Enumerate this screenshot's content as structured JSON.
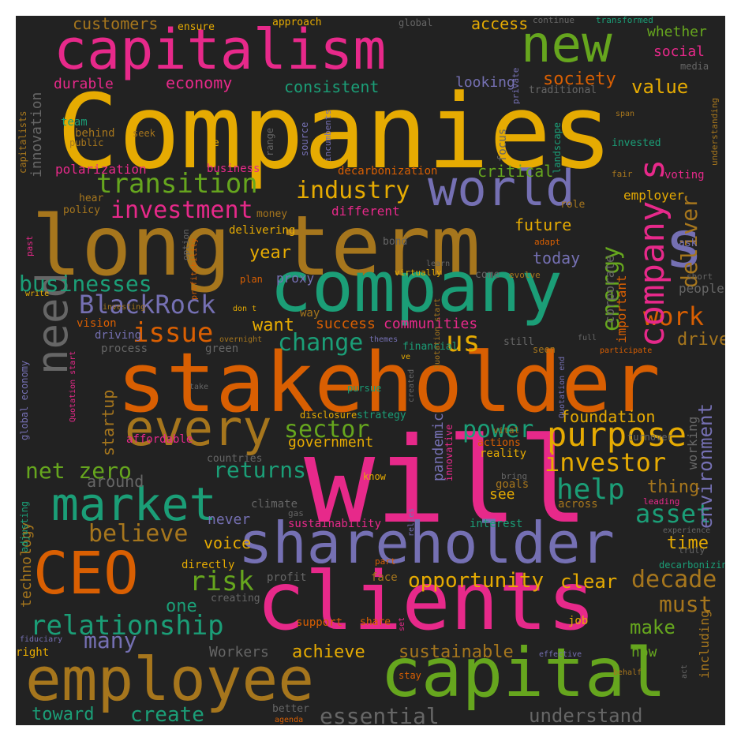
{
  "colors": {
    "background": "#222222",
    "frame": "#ffffff",
    "palette": [
      "#E6AB02",
      "#E7298A",
      "#66A61E",
      "#A6761D",
      "#1B9E77",
      "#7570B3",
      "#D95F02",
      "#666666"
    ]
  },
  "words": {
    "w_companies": {
      "text": "Companies",
      "color": "#E6AB02"
    },
    "w_will": {
      "text": "will",
      "color": "#E7298A"
    },
    "w_stakeholder": {
      "text": "stakeholder",
      "color": "#D95F02"
    },
    "w_long_term": {
      "text": "long term",
      "color": "#A6761D"
    },
    "w_clients": {
      "text": "clients",
      "color": "#E7298A"
    },
    "w_capitalism": {
      "text": "capitalism",
      "color": "#E7298A"
    },
    "w_company": {
      "text": "company",
      "color": "#1B9E77"
    },
    "w_shareholder": {
      "text": "shareholder",
      "color": "#7570B3"
    },
    "w_employee": {
      "text": "employee",
      "color": "#A6761D"
    },
    "w_capital": {
      "text": "capital",
      "color": "#66A61E"
    },
    "w_new": {
      "text": "new",
      "color": "#66A61E"
    },
    "w_world": {
      "text": "world",
      "color": "#7570B3"
    },
    "w_market": {
      "text": "market",
      "color": "#1B9E77"
    },
    "w_ceo": {
      "text": "CEO",
      "color": "#D95F02"
    },
    "w_need": {
      "text": "need",
      "color": "#666666"
    },
    "w_every": {
      "text": "every",
      "color": "#A6761D"
    },
    "w_s": {
      "text": "s",
      "color": "#7570B3"
    },
    "w_transition": {
      "text": "transition",
      "color": "#66A61E"
    },
    "w_investment": {
      "text": "investment",
      "color": "#E7298A"
    },
    "w_industry": {
      "text": "industry",
      "color": "#E6AB02"
    },
    "w_businesses": {
      "text": "businesses",
      "color": "#1B9E77"
    },
    "w_blackrock": {
      "text": "BlackRock",
      "color": "#7570B3"
    },
    "w_issue": {
      "text": "issue",
      "color": "#D95F02"
    },
    "w_change": {
      "text": "change",
      "color": "#1B9E77"
    },
    "w_us": {
      "text": "us",
      "color": "#E6AB02"
    },
    "w_purpose": {
      "text": "purpose",
      "color": "#E6AB02"
    },
    "w_investor": {
      "text": "investor",
      "color": "#E6AB02"
    },
    "w_power": {
      "text": "power",
      "color": "#1B9E77"
    },
    "w_sector": {
      "text": "sector",
      "color": "#66A61E"
    },
    "w_net_zero": {
      "text": "net zero",
      "color": "#66A61E"
    },
    "w_relationship": {
      "text": "relationship",
      "color": "#1B9E77"
    },
    "w_risk": {
      "text": "risk",
      "color": "#66A61E"
    },
    "w_believe": {
      "text": "believe",
      "color": "#A6761D"
    },
    "w_returns": {
      "text": "returns",
      "color": "#1B9E77"
    },
    "w_help": {
      "text": "help",
      "color": "#1B9E77"
    },
    "w_asset": {
      "text": "asset",
      "color": "#1B9E77"
    },
    "w_decade": {
      "text": "decade",
      "color": "#A6761D"
    },
    "w_must": {
      "text": "must",
      "color": "#A6761D"
    },
    "w_opportunity": {
      "text": "opportunity",
      "color": "#E6AB02"
    },
    "w_work": {
      "text": "work",
      "color": "#D95F02"
    },
    "w_energy": {
      "text": "energy",
      "color": "#66A61E"
    },
    "w_companys": {
      "text": "company s",
      "color": "#E7298A"
    },
    "w_deliver": {
      "text": "deliver",
      "color": "#A6761D"
    },
    "w_drive": {
      "text": "drive",
      "color": "#A6761D"
    },
    "w_environment": {
      "text": "environment",
      "color": "#7570B3"
    },
    "w_value": {
      "text": "value",
      "color": "#E6AB02"
    },
    "w_society": {
      "text": "society",
      "color": "#D95F02"
    },
    "w_consistent": {
      "text": "consistent",
      "color": "#1B9E77"
    },
    "w_economy": {
      "text": "economy",
      "color": "#E7298A"
    },
    "w_customers": {
      "text": "customers",
      "color": "#A6761D"
    },
    "w_access": {
      "text": "access",
      "color": "#E6AB02"
    },
    "w_whether": {
      "text": "whether",
      "color": "#66A61E"
    },
    "w_social": {
      "text": "social",
      "color": "#E7298A"
    },
    "w_looking": {
      "text": "looking",
      "color": "#7570B3"
    },
    "w_durable": {
      "text": "durable",
      "color": "#E7298A"
    },
    "w_innovation": {
      "text": "innovation",
      "color": "#666666"
    },
    "w_critical": {
      "text": "critical",
      "color": "#66A61E"
    },
    "w_decarbonization": {
      "text": "decarbonization",
      "color": "#D95F02"
    },
    "w_invested": {
      "text": "invested",
      "color": "#1B9E77"
    },
    "w_different": {
      "text": "different",
      "color": "#E7298A"
    },
    "w_employer": {
      "text": "employer",
      "color": "#E6AB02"
    },
    "w_voting": {
      "text": "voting",
      "color": "#E7298A"
    },
    "w_future": {
      "text": "future",
      "color": "#E6AB02"
    },
    "w_year": {
      "text": "year",
      "color": "#E6AB02"
    },
    "w_today": {
      "text": "today",
      "color": "#7570B3"
    },
    "w_corporate": {
      "text": "corporate",
      "color": "#666666"
    },
    "w_important": {
      "text": "important",
      "color": "#D95F02"
    },
    "w_people": {
      "text": "people",
      "color": "#666666"
    },
    "w_want": {
      "text": "want",
      "color": "#E6AB02"
    },
    "w_success": {
      "text": "success",
      "color": "#D95F02"
    },
    "w_communities": {
      "text": "communities",
      "color": "#E7298A"
    },
    "w_startup": {
      "text": "startup",
      "color": "#A6761D"
    },
    "w_foundation": {
      "text": "foundation",
      "color": "#E6AB02"
    },
    "w_working": {
      "text": "working",
      "color": "#666666"
    },
    "w_government": {
      "text": "government",
      "color": "#E6AB02"
    },
    "w_pandemic": {
      "text": "pandemic",
      "color": "#7570B3"
    },
    "w_see": {
      "text": "see",
      "color": "#E6AB02"
    },
    "w_thing": {
      "text": "thing",
      "color": "#A6761D"
    },
    "w_around": {
      "text": "around",
      "color": "#666666"
    },
    "w_technology": {
      "text": "technology",
      "color": "#A6761D"
    },
    "w_voice": {
      "text": "voice",
      "color": "#E6AB02"
    },
    "w_never": {
      "text": "never",
      "color": "#7570B3"
    },
    "w_time": {
      "text": "time",
      "color": "#E6AB02"
    },
    "w_clear": {
      "text": "clear",
      "color": "#E6AB02"
    },
    "w_make": {
      "text": "make",
      "color": "#66A61E"
    },
    "w_one": {
      "text": "one",
      "color": "#1B9E77"
    },
    "w_many": {
      "text": "many",
      "color": "#7570B3"
    },
    "w_achieve": {
      "text": "achieve",
      "color": "#E6AB02"
    },
    "w_sustainable": {
      "text": "sustainable",
      "color": "#A6761D"
    },
    "w_workers": {
      "text": "Workers",
      "color": "#666666"
    },
    "w_now": {
      "text": "now",
      "color": "#66A61E"
    },
    "w_including": {
      "text": "including",
      "color": "#A6761D"
    },
    "w_toward": {
      "text": "toward",
      "color": "#1B9E77"
    },
    "w_create": {
      "text": "create",
      "color": "#1B9E77"
    },
    "w_essential": {
      "text": "essential",
      "color": "#666666"
    },
    "w_understand": {
      "text": "understand",
      "color": "#666666"
    },
    "w_sustainability": {
      "text": "sustainability",
      "color": "#E7298A"
    },
    "w_interest": {
      "text": "interest",
      "color": "#1B9E77"
    },
    "w_climate": {
      "text": "climate",
      "color": "#666666"
    },
    "w_across": {
      "text": "across",
      "color": "#A6761D"
    },
    "w_goals": {
      "text": "goals",
      "color": "#A6761D"
    },
    "w_reality": {
      "text": "reality",
      "color": "#E6AB02"
    },
    "w_actions": {
      "text": "actions",
      "color": "#D95F02"
    },
    "w_support": {
      "text": "support",
      "color": "#D95F02"
    },
    "w_share": {
      "text": "share",
      "color": "#D95F02"
    },
    "w_directly": {
      "text": "directly",
      "color": "#E6AB02"
    },
    "w_creating": {
      "text": "creating",
      "color": "#666666"
    },
    "w_profit": {
      "text": "profit",
      "color": "#666666"
    },
    "w_face": {
      "text": "face",
      "color": "#A6761D"
    },
    "w_adjusting": {
      "text": "adjusting",
      "color": "#1B9E77"
    },
    "w_affordable": {
      "text": "affordable",
      "color": "#E7298A"
    },
    "w_countries": {
      "text": "countries",
      "color": "#666666"
    },
    "w_strategy": {
      "text": "strategy",
      "color": "#1B9E77"
    },
    "w_disclosure": {
      "text": "disclosure",
      "color": "#E6AB02"
    },
    "w_pursue": {
      "text": "pursue",
      "color": "#1B9E77"
    },
    "w_green": {
      "text": "green",
      "color": "#666666"
    },
    "w_process": {
      "text": "process",
      "color": "#666666"
    },
    "w_driving": {
      "text": "driving",
      "color": "#7570B3"
    },
    "w_vision": {
      "text": "vision",
      "color": "#D95F02"
    },
    "w_financial": {
      "text": "financial",
      "color": "#1B9E77"
    },
    "w_still": {
      "text": "still",
      "color": "#666666"
    },
    "w_seen": {
      "text": "seen",
      "color": "#A6761D"
    },
    "w_proxy": {
      "text": "proxy",
      "color": "#7570B3"
    },
    "w_delivering": {
      "text": "delivering",
      "color": "#E6AB02"
    },
    "w_money": {
      "text": "money",
      "color": "#A6761D"
    },
    "w_bond": {
      "text": "bond",
      "color": "#666666"
    },
    "w_hear": {
      "text": "hear",
      "color": "#A6761D"
    },
    "w_policy": {
      "text": "policy",
      "color": "#A6761D"
    },
    "w_polarization": {
      "text": "polarization",
      "color": "#E7298A"
    },
    "w_business": {
      "text": "business",
      "color": "#E7298A"
    },
    "w_team": {
      "text": "team",
      "color": "#1B9E77"
    },
    "w_behind": {
      "text": "behind",
      "color": "#A6761D"
    },
    "w_public": {
      "text": "public",
      "color": "#A6761D"
    },
    "w_seek": {
      "text": "seek",
      "color": "#A6761D"
    },
    "w_re": {
      "text": "re",
      "color": "#E6AB02"
    },
    "w_range": {
      "text": "range",
      "color": "#666666"
    },
    "w_source": {
      "text": "source",
      "color": "#7570B3"
    },
    "w_landscape": {
      "text": "landscape",
      "color": "#1B9E77"
    },
    "w_focus": {
      "text": "focus",
      "color": "#666666"
    },
    "w_incumbents": {
      "text": "incumbents",
      "color": "#7570B3"
    },
    "w_span": {
      "text": "span",
      "color": "#A6761D"
    },
    "w_fair": {
      "text": "fair",
      "color": "#A6761D"
    },
    "w_role": {
      "text": "role",
      "color": "#A6761D"
    },
    "w_adapt": {
      "text": "adapt",
      "color": "#D95F02"
    },
    "w_ask": {
      "text": "ask",
      "color": "#7570B3"
    },
    "w_short": {
      "text": "short",
      "color": "#666666"
    },
    "w_virtually": {
      "text": "virtually",
      "color": "#E6AB02"
    },
    "w_learn": {
      "text": "learn",
      "color": "#666666"
    },
    "w_come": {
      "text": "come",
      "color": "#666666"
    },
    "w_evolve": {
      "text": "evolve",
      "color": "#A6761D"
    },
    "w_plan": {
      "text": "plan",
      "color": "#D95F02"
    },
    "w_option": {
      "text": "option",
      "color": "#666666"
    },
    "w_profitability": {
      "text": "profitability",
      "color": "#D95F02"
    },
    "w_write": {
      "text": "write",
      "color": "#E6AB02"
    },
    "w_way": {
      "text": "way",
      "color": "#A6761D"
    },
    "w_overnight": {
      "text": "overnight",
      "color": "#A6761D"
    },
    "w_themes": {
      "text": "themes",
      "color": "#7570B3"
    },
    "w_ve": {
      "text": "ve",
      "color": "#E6AB02"
    },
    "w_investing": {
      "text": "investing",
      "color": "#A6761D"
    },
    "w_dont": {
      "text": "don t",
      "color": "#E6AB02"
    },
    "w_full": {
      "text": "full",
      "color": "#666666"
    },
    "w_participate": {
      "text": "participate",
      "color": "#D95F02"
    },
    "w_quotation_end": {
      "text": "Quotation end",
      "color": "#7570B3"
    },
    "w_quotation_start": {
      "text": "Quotation start",
      "color": "#E7298A"
    },
    "w_quotation_start2": {
      "text": "Quotation start",
      "color": "#A6761D"
    },
    "w_take": {
      "text": "take",
      "color": "#666666"
    },
    "w_created": {
      "text": "created",
      "color": "#666666"
    },
    "w_innovative": {
      "text": "innovative",
      "color": "#E7298A"
    },
    "w_global_economy": {
      "text": "global economy",
      "color": "#7570B3"
    },
    "w_vital": {
      "text": "vital",
      "color": "#A6761D"
    },
    "w_turnover": {
      "text": "turnover",
      "color": "#666666"
    },
    "w_know": {
      "text": "know",
      "color": "#E6AB02"
    },
    "w_bring": {
      "text": "bring",
      "color": "#666666"
    },
    "w_leading": {
      "text": "leading",
      "color": "#E7298A"
    },
    "w_gas": {
      "text": "gas",
      "color": "#666666"
    },
    "w_experience": {
      "text": "experience",
      "color": "#666666"
    },
    "w_relies": {
      "text": "relies",
      "color": "#7570B3"
    },
    "w_truly": {
      "text": "truly",
      "color": "#666666"
    },
    "w_decarbonizing": {
      "text": "decarbonizing",
      "color": "#1B9E77"
    },
    "w_part": {
      "text": "part",
      "color": "#D95F02"
    },
    "w_set": {
      "text": "set",
      "color": "#E7298A"
    },
    "w_job": {
      "text": "job",
      "color": "#E6AB02"
    },
    "w_fiduciary": {
      "text": "fiduciary",
      "color": "#7570B3"
    },
    "w_right": {
      "text": "right",
      "color": "#E6AB02"
    },
    "w_effective": {
      "text": "effective",
      "color": "#7570B3"
    },
    "w_behalf": {
      "text": "behalf",
      "color": "#A6761D"
    },
    "w_act": {
      "text": "act",
      "color": "#666666"
    },
    "w_stay": {
      "text": "stay",
      "color": "#D95F02"
    },
    "w_better": {
      "text": "better",
      "color": "#666666"
    },
    "w_agenda": {
      "text": "agenda",
      "color": "#D95F02"
    },
    "w_ensure": {
      "text": "ensure",
      "color": "#E6AB02"
    },
    "w_approach": {
      "text": "approach",
      "color": "#E6AB02"
    },
    "w_global": {
      "text": "global",
      "color": "#666666"
    },
    "w_continue": {
      "text": "continue",
      "color": "#666666"
    },
    "w_transformed": {
      "text": "transformed",
      "color": "#1B9E77"
    },
    "w_media": {
      "text": "media",
      "color": "#666666"
    },
    "w_private": {
      "text": "private",
      "color": "#7570B3"
    },
    "w_traditional": {
      "text": "traditional",
      "color": "#666666"
    },
    "w_understanding": {
      "text": "understanding",
      "color": "#A6761D"
    },
    "w_capitalists": {
      "text": "capitalists",
      "color": "#A6761D"
    },
    "w_past": {
      "text": "past",
      "color": "#E7298A"
    }
  }
}
